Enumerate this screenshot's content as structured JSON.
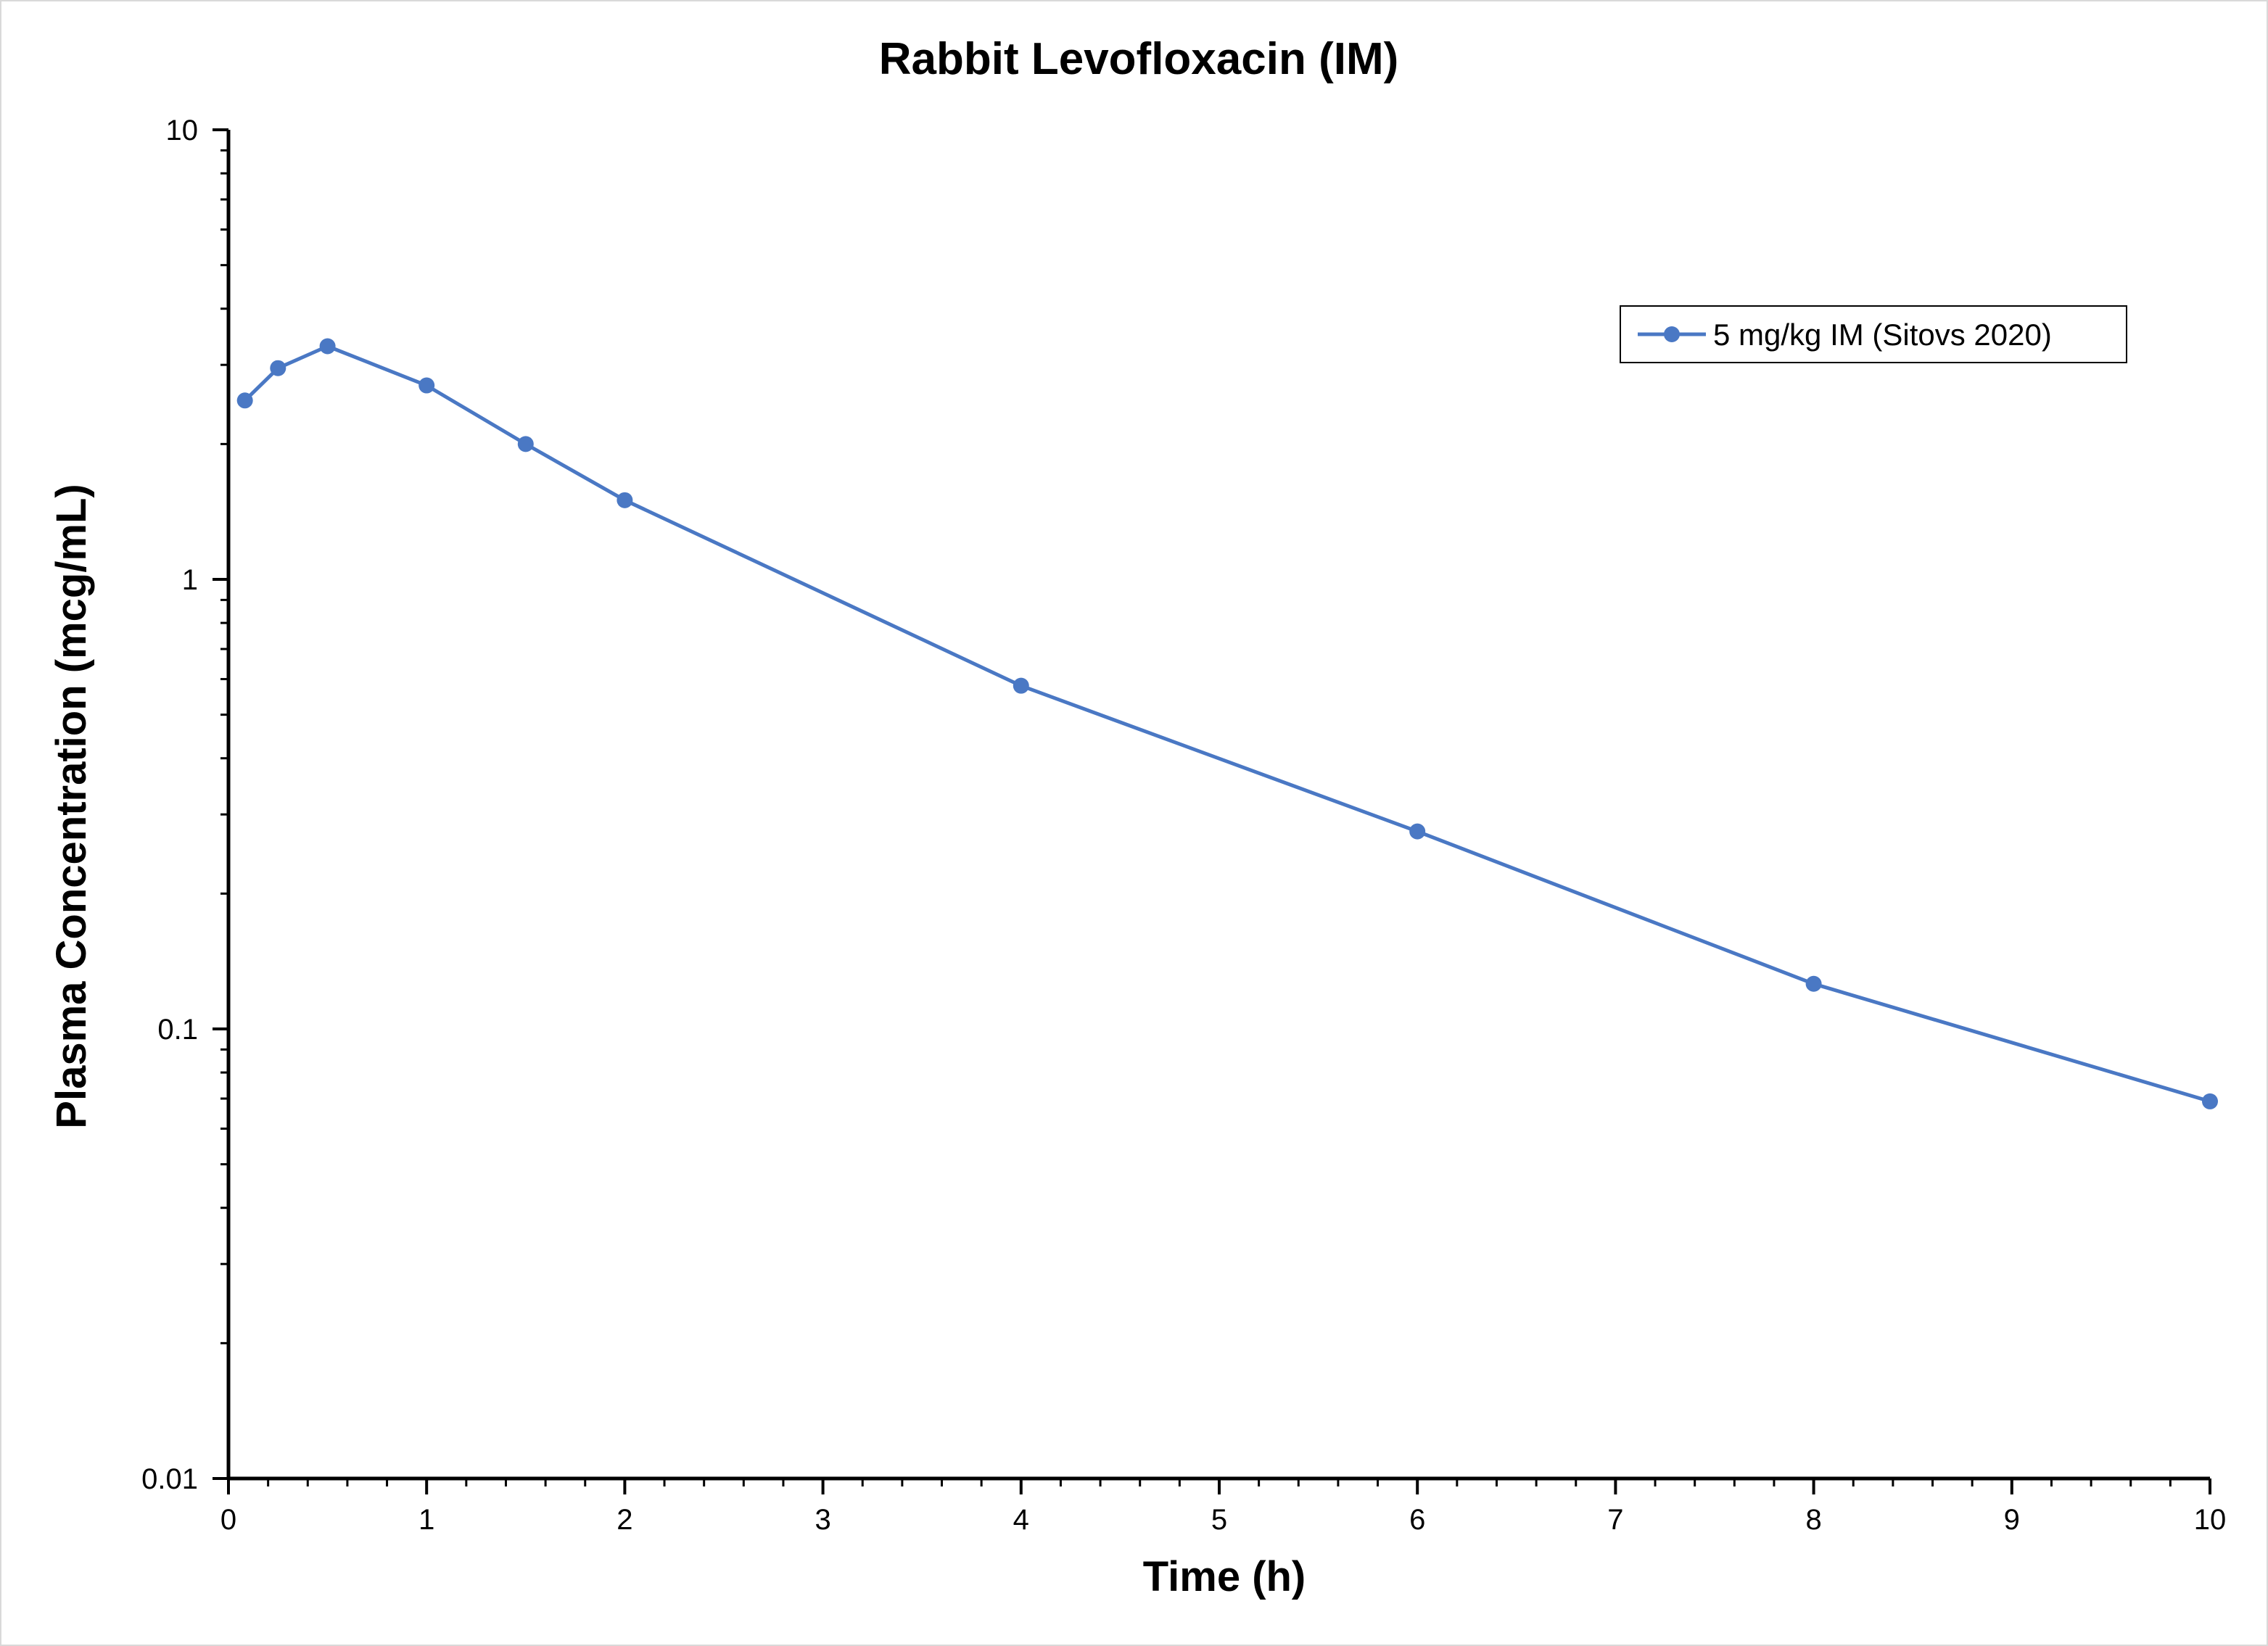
{
  "chart_data": {
    "type": "line",
    "title": "Rabbit Levofloxacin (IM)",
    "xlabel": "Time (h)",
    "ylabel": "Plasma Concentration (mcg/mL)",
    "xlim": [
      0,
      10
    ],
    "ylim": [
      0.01,
      10
    ],
    "y_scale": "log",
    "x_ticks": [
      0,
      1,
      2,
      3,
      4,
      5,
      6,
      7,
      8,
      9,
      10
    ],
    "y_ticks": [
      0.01,
      0.1,
      1,
      10
    ],
    "y_tick_labels": [
      "0.01",
      "0.1",
      "1",
      "10"
    ],
    "x_tick_labels": [
      "0",
      "1",
      "2",
      "3",
      "4",
      "5",
      "6",
      "7",
      "8",
      "9",
      "10"
    ],
    "grid": false,
    "legend_position": "top-right",
    "series": [
      {
        "name": "5 mg/kg IM (Sitovs 2020)",
        "color": "#4a78c4",
        "marker": "circle",
        "x": [
          0.083,
          0.25,
          0.5,
          1,
          1.5,
          2,
          4,
          6,
          8,
          10
        ],
        "y": [
          2.5,
          2.95,
          3.3,
          2.7,
          2.0,
          1.5,
          0.58,
          0.275,
          0.126,
          0.069
        ]
      }
    ]
  }
}
